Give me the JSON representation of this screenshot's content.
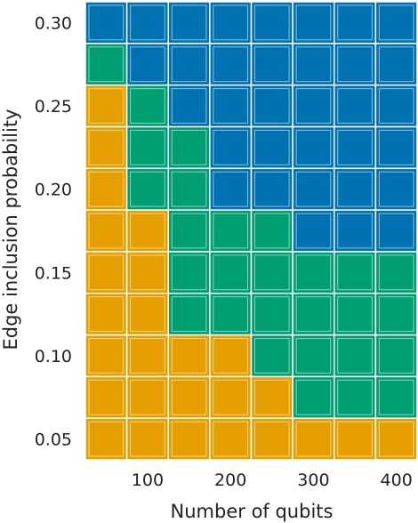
{
  "chart_data": {
    "type": "heatmap",
    "title": "",
    "xlabel": "Number of qubits",
    "ylabel": "Edge inclusion probability",
    "x_ticks": [
      100,
      200,
      300,
      400
    ],
    "y_ticks": [
      "0.05",
      "0.10",
      "0.15",
      "0.20",
      "0.25",
      "0.30"
    ],
    "x_values": [
      50,
      100,
      150,
      200,
      250,
      300,
      350,
      400
    ],
    "y_values": [
      0.05,
      0.075,
      0.1,
      0.125,
      0.15,
      0.175,
      0.2,
      0.225,
      0.25,
      0.275,
      0.3
    ],
    "x_range": [
      25,
      425
    ],
    "y_range": [
      0.0375,
      0.3125
    ],
    "grid": false,
    "legend": "none",
    "category_colors": [
      "#e69f00",
      "#009e73",
      "#0072b2"
    ],
    "cells": [
      [
        0,
        0,
        0,
        0,
        0,
        0,
        0,
        0
      ],
      [
        0,
        0,
        0,
        0,
        0,
        1,
        1,
        1
      ],
      [
        0,
        0,
        0,
        0,
        1,
        1,
        1,
        1
      ],
      [
        0,
        0,
        1,
        1,
        1,
        1,
        1,
        1
      ],
      [
        0,
        0,
        1,
        1,
        1,
        1,
        1,
        1
      ],
      [
        0,
        0,
        1,
        1,
        1,
        2,
        2,
        2
      ],
      [
        0,
        1,
        1,
        2,
        2,
        2,
        2,
        2
      ],
      [
        0,
        1,
        1,
        2,
        2,
        2,
        2,
        2
      ],
      [
        0,
        1,
        2,
        2,
        2,
        2,
        2,
        2
      ],
      [
        1,
        2,
        2,
        2,
        2,
        2,
        2,
        2
      ],
      [
        2,
        2,
        2,
        2,
        2,
        2,
        2,
        2
      ]
    ]
  }
}
